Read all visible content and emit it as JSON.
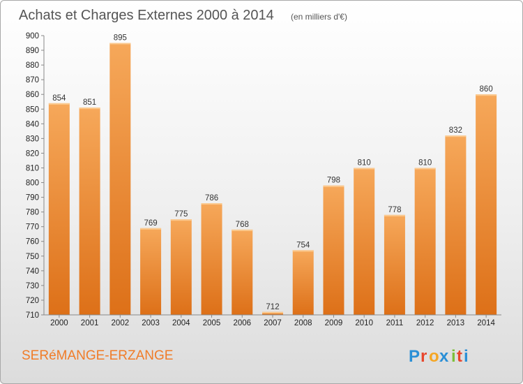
{
  "chart_data": {
    "type": "bar",
    "title": "Achats et Charges Externes 2000 à 2014",
    "subtitle": "(en milliers d'€)",
    "categories": [
      "2000",
      "2001",
      "2002",
      "2003",
      "2004",
      "2005",
      "2006",
      "2007",
      "2008",
      "2009",
      "2010",
      "2011",
      "2012",
      "2013",
      "2014"
    ],
    "values": [
      854,
      851,
      895,
      769,
      775,
      786,
      768,
      712,
      754,
      798,
      810,
      778,
      810,
      832,
      860
    ],
    "ylim": [
      710,
      900
    ],
    "yticks": [
      710,
      720,
      730,
      740,
      750,
      760,
      770,
      780,
      790,
      800,
      810,
      820,
      830,
      840,
      850,
      860,
      870,
      880,
      890,
      900
    ],
    "grid": false,
    "bar_color": "#f29a40"
  },
  "footer": {
    "place": "SERéMANGE-ERZANGE",
    "logo": "Proxiti",
    "logo_colors": [
      "#2a8fd6",
      "#e8452c",
      "#f5a623",
      "#2a8fd6",
      "#7cbf3a",
      "#e8452c",
      "#2a8fd6"
    ]
  }
}
